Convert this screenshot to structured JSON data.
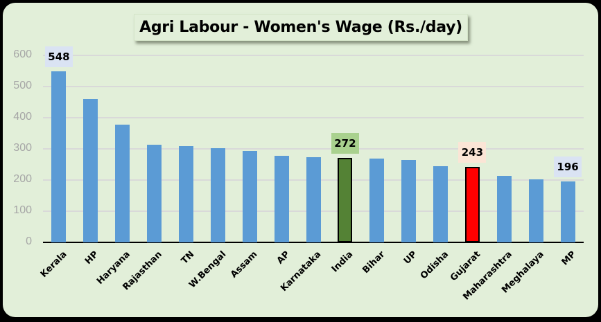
{
  "chart_data": {
    "type": "bar",
    "title": "Agri Labour - Women's Wage (Rs./day)",
    "xlabel": "",
    "ylabel": "",
    "ylim": [
      0,
      600
    ],
    "yticks": [
      0,
      100,
      200,
      300,
      400,
      500,
      600
    ],
    "grid": true,
    "legend": null,
    "categories": [
      "Kerala",
      "HP",
      "Haryana",
      "Rajasthan",
      "TN",
      "W.Bengal",
      "Assam",
      "AP",
      "Karnataka",
      "India",
      "Bihar",
      "UP",
      "Odisha",
      "Gujarat",
      "Maharashtra",
      "Meghalaya",
      "MP"
    ],
    "values": [
      548,
      460,
      378,
      313,
      309,
      302,
      293,
      278,
      273,
      272,
      269,
      264,
      244,
      243,
      213,
      202,
      196
    ],
    "data_labels": [
      {
        "category": "Kerala",
        "value": "548",
        "bg": "#dae3f3"
      },
      {
        "category": "India",
        "value": "272",
        "bg": "#a9d18e"
      },
      {
        "category": "Gujarat",
        "value": "243",
        "bg": "#fbe5d6"
      },
      {
        "category": "MP",
        "value": "196",
        "bg": "#dae3f3"
      }
    ],
    "colors": {
      "default_bar": "#5b9bd5",
      "india_bar": "#548235",
      "gujarat_bar": "#ff0000",
      "background": "#e2efd9",
      "gridline": "#d9d9d9"
    }
  }
}
